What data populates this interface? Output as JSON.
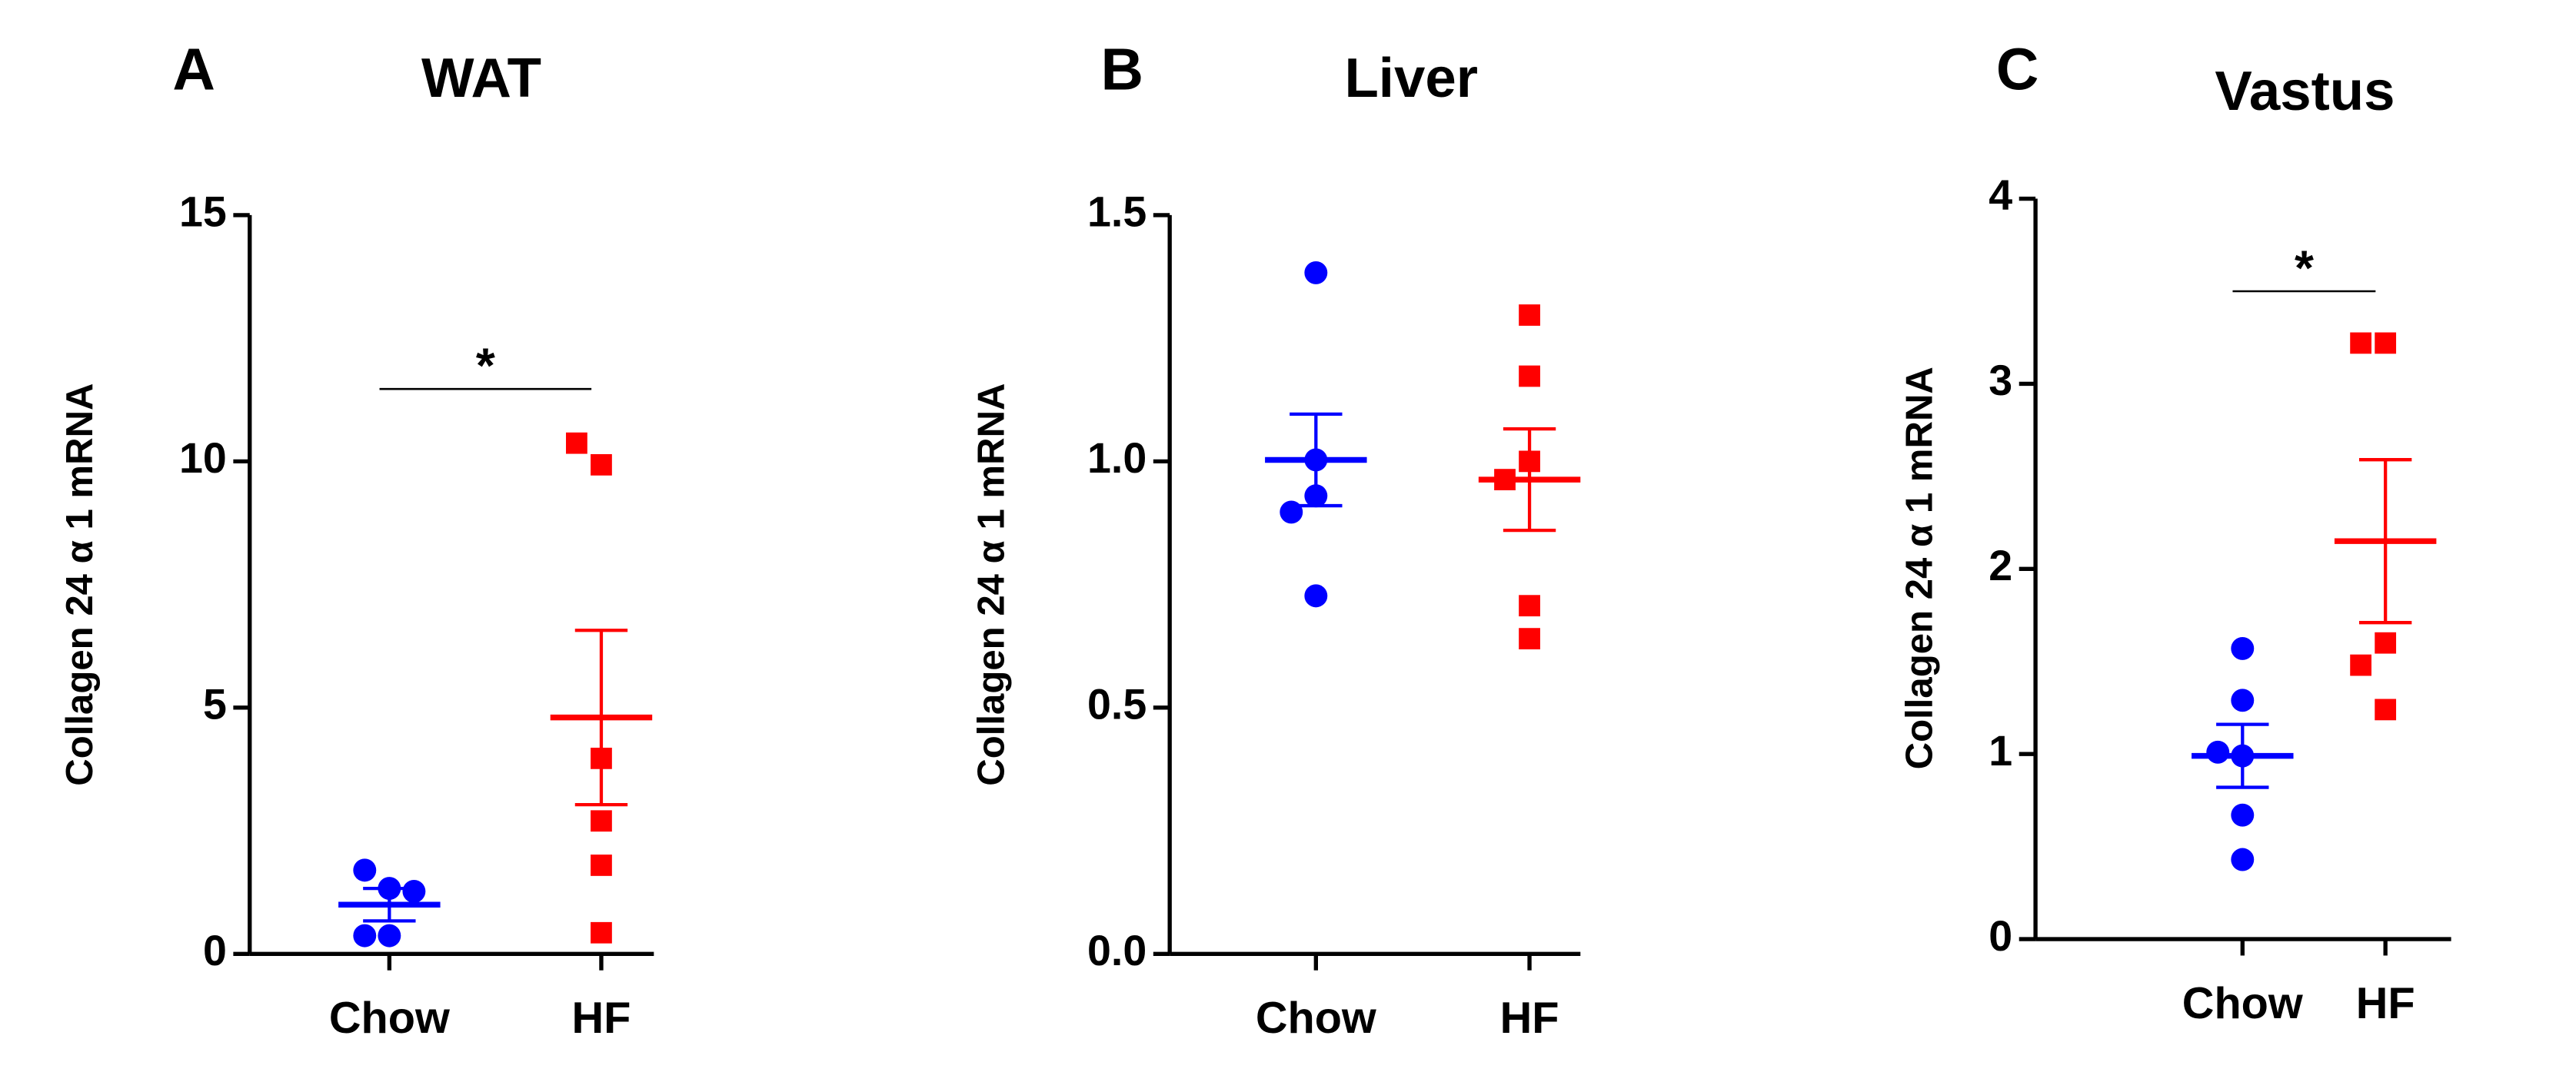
{
  "chart_data": [
    {
      "type": "scatter",
      "panel_label": "A",
      "title": "WAT",
      "ylabel": "Collagen 24 α 1 mRNA",
      "ylim": [
        0,
        15
      ],
      "yticks": [
        0,
        5,
        10,
        15
      ],
      "groups": [
        {
          "label": "Chow",
          "color": "#0000ff",
          "marker": "circle",
          "values": [
            1.33,
            1.7,
            1.27,
            0.37,
            0.37
          ],
          "mean": 1.0,
          "sem": 0.33
        },
        {
          "label": "HF",
          "color": "#ff0000",
          "marker": "square",
          "values": [
            9.93,
            10.37,
            3.97,
            2.7,
            1.8,
            0.43
          ],
          "mean": 4.8,
          "sem": 1.77
        }
      ],
      "significance": {
        "label": "*",
        "y": 11.47
      }
    },
    {
      "type": "scatter",
      "panel_label": "B",
      "title": "Liver",
      "ylabel": "Collagen 24 α 1 mRNA",
      "ylim": [
        0,
        1.5
      ],
      "yticks": [
        {
          "value": 0,
          "label": "0.0"
        },
        0.5,
        {
          "value": 1,
          "label": "1.0"
        },
        1.5
      ],
      "groups": [
        {
          "label": "Chow",
          "color": "#0000ff",
          "marker": "circle",
          "values": [
            1.383,
            1.003,
            0.93,
            0.897,
            0.727
          ],
          "mean": 1.003,
          "sem": 0.093
        },
        {
          "label": "HF",
          "color": "#ff0000",
          "marker": "square",
          "values": [
            1.297,
            1.173,
            1.0,
            0.963,
            0.707,
            0.64
          ],
          "mean": 0.963,
          "sem": 0.103
        }
      ]
    },
    {
      "type": "scatter",
      "panel_label": "C",
      "title": "Vastus",
      "ylabel": "Collagen 24 α 1 mRNA",
      "ylim": [
        0,
        4
      ],
      "yticks": [
        0,
        1,
        2,
        3,
        4
      ],
      "groups": [
        {
          "label": "Chow",
          "color": "#0000ff",
          "marker": "circle",
          "values": [
            1.57,
            1.29,
            0.99,
            1.01,
            0.67,
            0.43
          ],
          "mean": 0.99,
          "sem": 0.17
        },
        {
          "label": "HF",
          "color": "#ff0000",
          "marker": "square",
          "values": [
            3.22,
            3.22,
            1.6,
            1.48,
            1.24
          ],
          "mean": 2.15,
          "sem": 0.44
        }
      ],
      "significance": {
        "label": "*",
        "y": 3.5
      }
    }
  ]
}
